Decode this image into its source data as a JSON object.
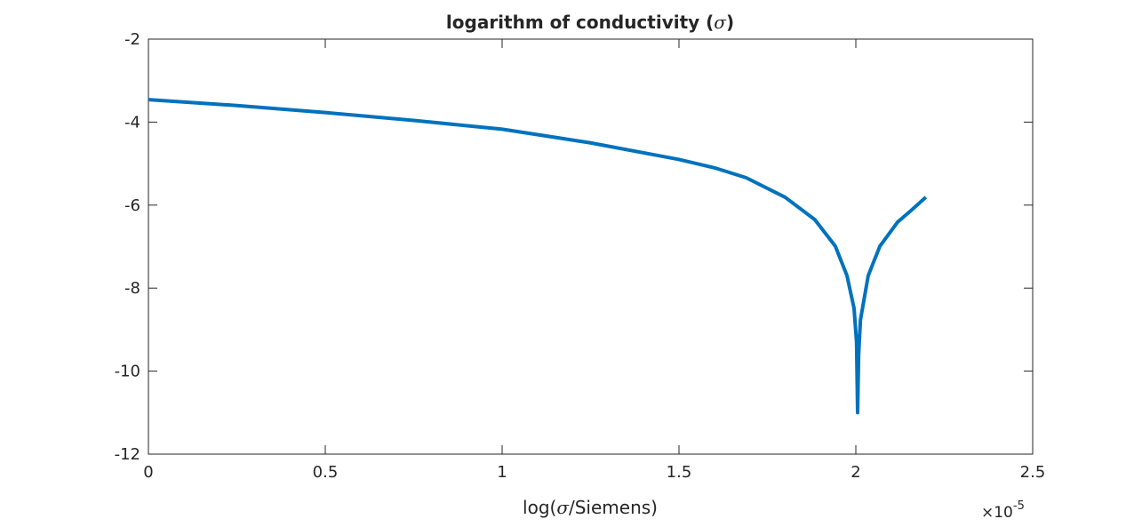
{
  "chart_data": {
    "type": "line",
    "title": "logarithm of conductivity (σ)",
    "title_parts": {
      "before": "logarithm of conductivity (",
      "symbol": "σ",
      "after": ")"
    },
    "xlabel": "log(σ/Siemens)",
    "xlabel_parts": {
      "before": "log(",
      "symbol": "σ",
      "after": "/Siemens)"
    },
    "ylabel": "",
    "xlim": [
      0,
      2.5e-05
    ],
    "ylim": [
      -12,
      -2
    ],
    "x_exponent_label": {
      "base": "×10",
      "exp": "-5"
    },
    "xticks": [
      0,
      0.5,
      1,
      1.5,
      2,
      2.5
    ],
    "xtick_labels": [
      "0",
      "0.5",
      "1",
      "1.5",
      "2",
      "2.5"
    ],
    "yticks": [
      -2,
      -4,
      -6,
      -8,
      -10,
      -12
    ],
    "ytick_labels": [
      "-2",
      "-4",
      "-6",
      "-8",
      "-10",
      "-12"
    ],
    "grid": false,
    "line_color": "#0072BD",
    "series": [
      {
        "x": [
          0,
          2.5e-06,
          5e-06,
          7.5e-06,
          1e-05,
          1.25e-05,
          1.5e-05,
          1.6e-05,
          1.69e-05,
          1.8e-05,
          1.884e-05,
          1.942e-05,
          1.975e-05,
          1.995e-05,
          2.002e-05,
          2.005e-05,
          2.008e-05,
          2.013e-05,
          2.035e-05,
          2.068e-05,
          2.118e-05,
          2.16e-05,
          2.198e-05
        ],
        "y": [
          -3.46,
          -3.6,
          -3.77,
          -3.96,
          -4.17,
          -4.5,
          -4.9,
          -5.1,
          -5.34,
          -5.81,
          -6.35,
          -6.99,
          -7.7,
          -8.49,
          -9.3,
          -11.0,
          -9.6,
          -8.77,
          -7.7,
          -6.99,
          -6.41,
          -6.1,
          -5.81
        ]
      }
    ]
  }
}
